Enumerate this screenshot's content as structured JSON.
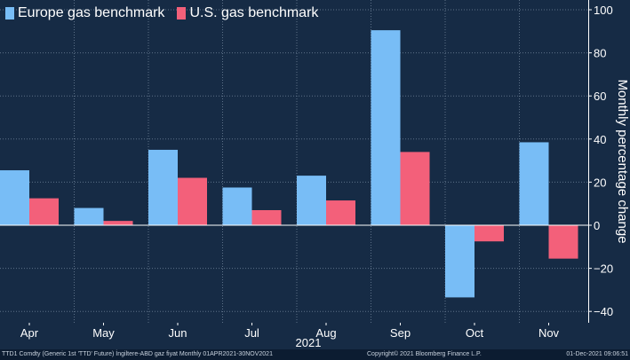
{
  "legend": {
    "europe_label": "Europe gas benchmark",
    "us_label": "U.S. gas benchmark"
  },
  "chart_data": {
    "type": "bar",
    "categories": [
      "Apr",
      "May",
      "Jun",
      "Jul",
      "Aug",
      "Sep",
      "Oct",
      "Nov"
    ],
    "x_group_label": "2021",
    "ylabel": "Monthly percentage change",
    "ylim": [
      -40,
      100
    ],
    "yticks": [
      -40,
      -20,
      0,
      20,
      40,
      60,
      80,
      100
    ],
    "grid": true,
    "legend_position": "top-left",
    "series": [
      {
        "name": "Europe gas benchmark",
        "color": "#78bdf6",
        "values": [
          25.5,
          8,
          35,
          17.5,
          23,
          90.5,
          -33.5,
          38.5
        ]
      },
      {
        "name": "U.S. gas benchmark",
        "color": "#f3607a",
        "values": [
          12.5,
          2,
          22,
          7,
          11.5,
          34,
          -7.5,
          -15.5
        ]
      }
    ]
  },
  "footer": {
    "left": "TTD1 Comdty (Generic 1st 'TTD' Future) İngiltere-ABD gaz fiyat  Monthly 01APR2021-30NOV2021",
    "center": "Copyright© 2021 Bloomberg Finance L.P.",
    "right": "01-Dec-2021 09:06:51"
  }
}
